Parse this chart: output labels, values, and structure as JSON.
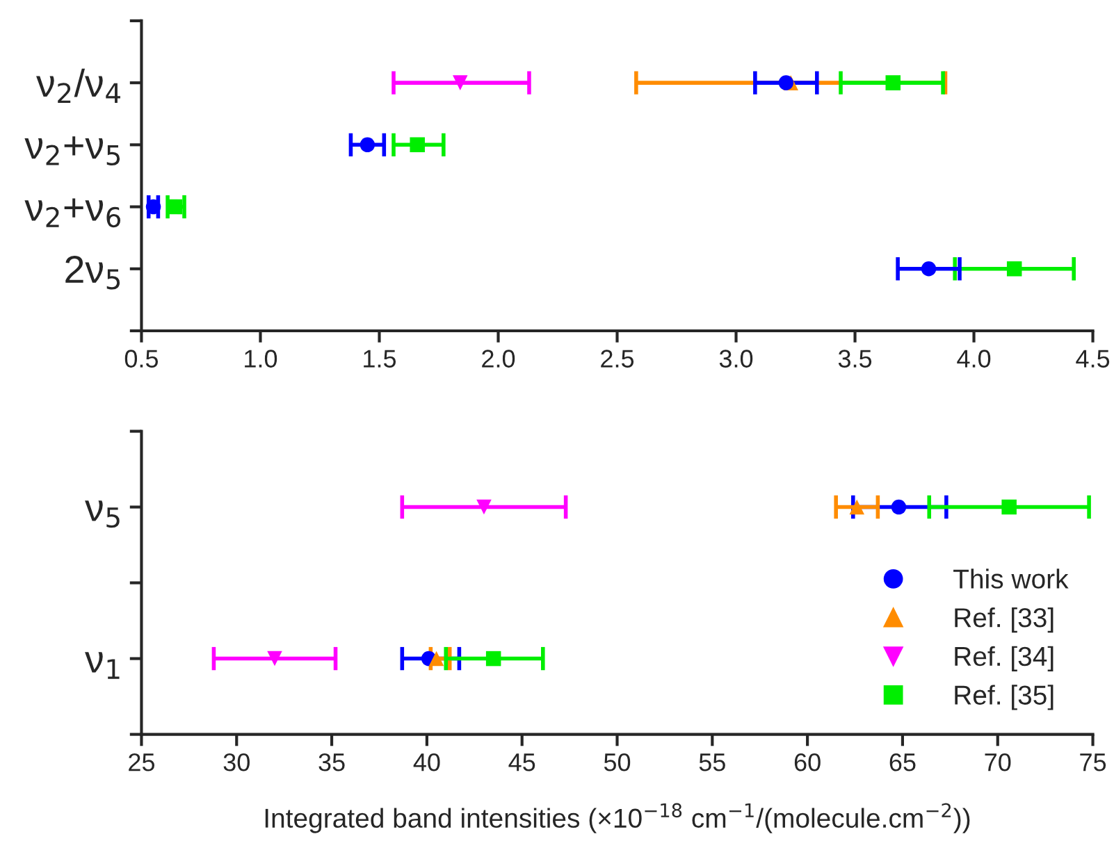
{
  "chart_data": [
    {
      "type": "scatter",
      "orientation": "horizontal",
      "categories": [
        "ν$_{2}$/ν$_{4}$",
        "ν$_{2}$+ν$_{5}$",
        "ν$_{2}$+ν$_{6}$",
        "2ν$_{5}$"
      ],
      "xlim": [
        0.5,
        4.5
      ],
      "xticks": [
        {
          "value": 0.5,
          "label": "0.5"
        },
        {
          "value": 1.0,
          "label": "1.0"
        },
        {
          "value": 1.5,
          "label": "1.5"
        },
        {
          "value": 2.0,
          "label": "2.0"
        },
        {
          "value": 2.5,
          "label": "2.5"
        },
        {
          "value": 3.0,
          "label": "3.0"
        },
        {
          "value": 3.5,
          "label": "3.5"
        },
        {
          "value": 4.0,
          "label": "4.0"
        },
        {
          "value": 4.5,
          "label": "4.5"
        }
      ],
      "grid": false,
      "legend": false,
      "series": [
        {
          "color": "#ff8c00",
          "marker": "triangle",
          "values": [
            3.23,
            null,
            null,
            null
          ],
          "errors": [
            [
              2.58,
              3.88
            ],
            null,
            null,
            null
          ]
        },
        {
          "color": "#ff00ff",
          "marker": "triangle_down",
          "values": [
            1.84,
            null,
            null,
            null
          ],
          "errors": [
            [
              1.56,
              2.13
            ],
            null,
            null,
            null
          ]
        },
        {
          "color": "#00ee00",
          "marker": "square",
          "values": [
            3.66,
            1.66,
            0.64,
            4.17
          ],
          "errors": [
            [
              3.44,
              3.87
            ],
            [
              1.56,
              1.77
            ],
            [
              0.61,
              0.68
            ],
            [
              3.92,
              4.42
            ]
          ]
        },
        {
          "color": "#0000ff",
          "marker": "circle",
          "values": [
            3.21,
            1.45,
            0.55,
            3.81
          ],
          "errors": [
            [
              3.08,
              3.34
            ],
            [
              1.38,
              1.52
            ],
            [
              0.53,
              0.57
            ],
            [
              3.68,
              3.94
            ]
          ]
        }
      ]
    },
    {
      "type": "scatter",
      "orientation": "horizontal",
      "categories": [
        "ν$_{5}$",
        null,
        "ν$_{1}$"
      ],
      "xlim": [
        25,
        75
      ],
      "xticks": [
        25,
        30,
        35,
        40,
        45,
        50,
        55,
        60,
        65,
        70,
        75
      ],
      "xlabel": "Integrated band intensities (×10$^{−18}$ cm$^{−1}$/(molecule.cm$^{−2}$))",
      "grid": false,
      "legend": "bottom right",
      "series": [
        {
          "name": "This work",
          "color": "#0000ff",
          "marker": "circle",
          "values": [
            64.8,
            null,
            40.1
          ],
          "errors": [
            [
              62.4,
              67.3
            ],
            null,
            [
              38.7,
              41.7
            ]
          ]
        },
        {
          "name": "Ref. [33]",
          "color": "#ff8c00",
          "marker": "triangle",
          "values": [
            62.6,
            null,
            40.5
          ],
          "errors": [
            [
              61.5,
              63.7
            ],
            null,
            [
              40.2,
              41.2
            ]
          ]
        },
        {
          "name": "Ref. [34]",
          "color": "#ff00ff",
          "marker": "triangle_down",
          "values": [
            43.0,
            null,
            32.0
          ],
          "errors": [
            [
              38.7,
              47.3
            ],
            null,
            [
              28.8,
              35.2
            ]
          ]
        },
        {
          "name": "Ref. [35]",
          "color": "#00ee00",
          "marker": "square",
          "values": [
            70.6,
            null,
            43.5
          ],
          "errors": [
            [
              66.4,
              74.8
            ],
            null,
            [
              41.0,
              46.1
            ]
          ]
        }
      ]
    }
  ]
}
